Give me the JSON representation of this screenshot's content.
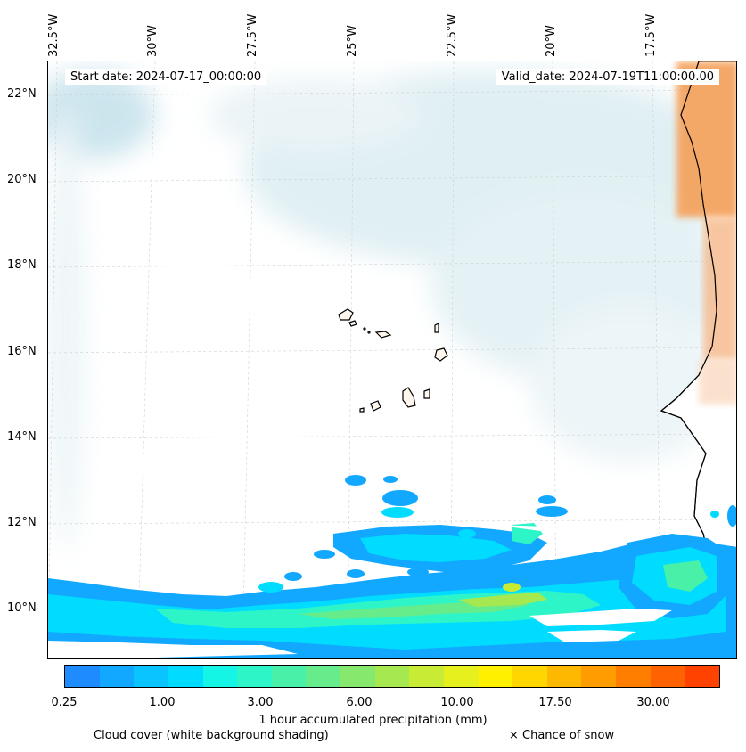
{
  "map": {
    "start_date": "Start date: 2024-07-17_00:00:00",
    "valid_date": "Valid_date: 2024-07-19T11:00:00.00",
    "lon_labels": [
      "32.5°W",
      "30°W",
      "27.5°W",
      "25°W",
      "22.5°W",
      "20°W",
      "17.5°W"
    ],
    "lat_labels": [
      "22°N",
      "20°N",
      "18°N",
      "16°N",
      "14°N",
      "12°N",
      "10°N"
    ],
    "land_color": "#f4a460",
    "cloud_color": "#cfe6ee"
  },
  "colorbar": {
    "label": "1 hour accumulated precipitation (mm)",
    "ticks": [
      "0.25",
      "1.00",
      "3.00",
      "6.00",
      "10.00",
      "17.50",
      "30.00"
    ],
    "colors": [
      "#1e8cff",
      "#13a8ff",
      "#0ac4ff",
      "#00dcff",
      "#14f5e6",
      "#2ef5c8",
      "#48f0a8",
      "#66ec8a",
      "#86e86c",
      "#a6e850",
      "#c8ec34",
      "#e6f01c",
      "#fff000",
      "#ffd600",
      "#ffb800",
      "#ff9c00",
      "#ff7e00",
      "#ff6200",
      "#ff4200"
    ]
  },
  "footer": {
    "cloud_note": "Cloud cover (white background shading)",
    "snow_note": "× Chance of snow"
  }
}
